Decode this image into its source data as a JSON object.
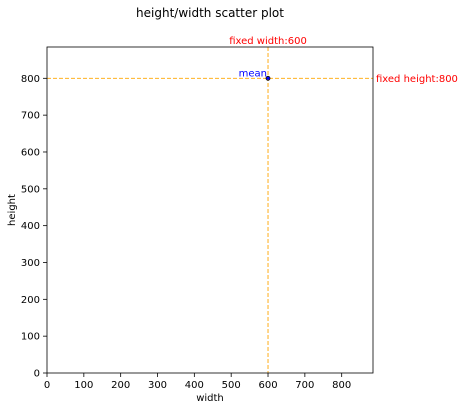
{
  "chart_data": {
    "type": "scatter",
    "title": "height/width scatter plot",
    "xlabel": "width",
    "ylabel": "height",
    "xlim": [
      0,
      885
    ],
    "ylim": [
      0,
      885
    ],
    "xticks": [
      0,
      100,
      200,
      300,
      400,
      500,
      600,
      700,
      800
    ],
    "yticks": [
      0,
      100,
      200,
      300,
      400,
      500,
      600,
      700,
      800
    ],
    "points": [
      {
        "x": 600,
        "y": 800
      }
    ],
    "point_color": "#0000ff",
    "mean_point": {
      "x": 600,
      "y": 800,
      "label": "mean"
    },
    "reference_lines": [
      {
        "orientation": "vertical",
        "value": 600,
        "label": "fixed width:600",
        "color": "#ffa500"
      },
      {
        "orientation": "horizontal",
        "value": 800,
        "label": "fixed height:800",
        "color": "#ffa500"
      }
    ],
    "annotation_color": "#ff0000",
    "mean_label_color": "#0000ff",
    "grid": false,
    "legend": false
  }
}
